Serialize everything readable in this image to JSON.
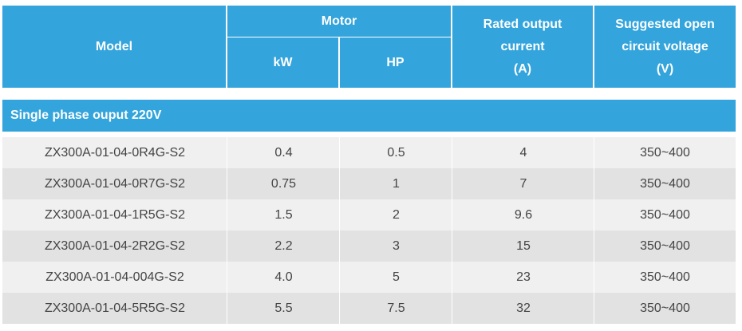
{
  "table": {
    "header": {
      "model": "Model",
      "motor": "Motor",
      "kw": "kW",
      "hp": "HP",
      "rated_output_current": [
        "Rated output",
        "current",
        "(A)"
      ],
      "suggested_voltage": [
        "Suggested open",
        "circuit voltage",
        "(V)"
      ]
    },
    "section_title": "Single phase ouput 220V",
    "rows": [
      {
        "model": "ZX300A-01-04-0R4G-S2",
        "kw": "0.4",
        "hp": "0.5",
        "current": "4",
        "voltage": "350~400"
      },
      {
        "model": "ZX300A-01-04-0R7G-S2",
        "kw": "0.75",
        "hp": "1",
        "current": "7",
        "voltage": "350~400"
      },
      {
        "model": "ZX300A-01-04-1R5G-S2",
        "kw": "1.5",
        "hp": "2",
        "current": "9.6",
        "voltage": "350~400"
      },
      {
        "model": "ZX300A-01-04-2R2G-S2",
        "kw": "2.2",
        "hp": "3",
        "current": "15",
        "voltage": "350~400"
      },
      {
        "model": "ZX300A-01-04-004G-S2",
        "kw": "4.0",
        "hp": "5",
        "current": "23",
        "voltage": "350~400"
      },
      {
        "model": "ZX300A-01-04-5R5G-S2",
        "kw": "5.5",
        "hp": "7.5",
        "current": "32",
        "voltage": "350~400"
      }
    ],
    "colors": {
      "header_bg": "#33a4dc",
      "row_light": "#f0f0f0",
      "row_dark": "#e2e2e2",
      "text": "#444444"
    }
  }
}
